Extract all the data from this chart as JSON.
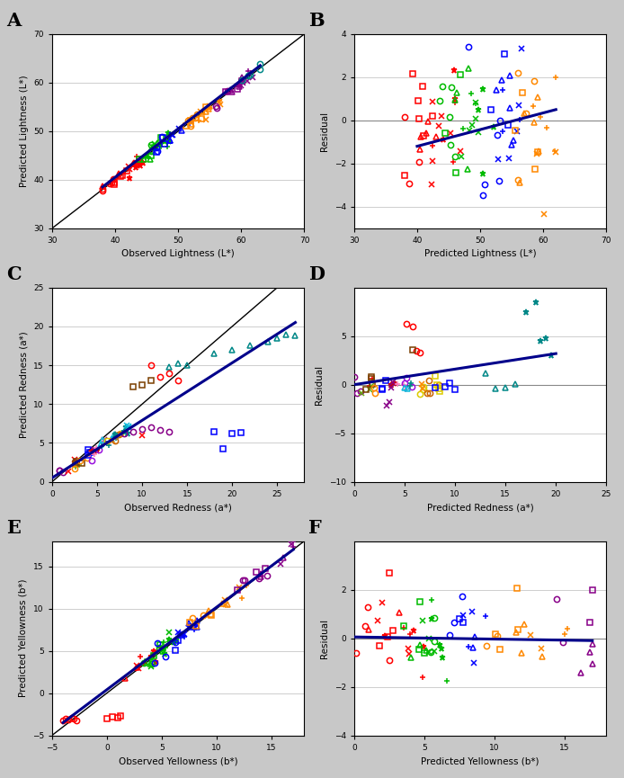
{
  "panels": {
    "A": {
      "xlabel": "Observed Lightness (L*)",
      "ylabel": "Predicted Lightness (L*)",
      "xlim": [
        30,
        70
      ],
      "ylim": [
        30,
        70
      ],
      "xticks": [
        30,
        40,
        50,
        60,
        70
      ],
      "yticks": [
        30,
        40,
        50,
        60,
        70
      ],
      "identity_line": true,
      "trend_line": true,
      "trend_x": [
        38,
        63
      ],
      "trend_y": [
        38.5,
        63.5
      ],
      "label": "A"
    },
    "B": {
      "xlabel": "Predicted Lightness (L*)",
      "ylabel": "Residual",
      "xlim": [
        30,
        70
      ],
      "ylim": [
        -5,
        4
      ],
      "xticks": [
        30,
        40,
        50,
        60,
        70
      ],
      "yticks": [
        -4,
        -2,
        0,
        2,
        4
      ],
      "hline": true,
      "trend_line": true,
      "trend_x": [
        40,
        62
      ],
      "trend_y": [
        -1.2,
        0.5
      ],
      "label": "B"
    },
    "C": {
      "xlabel": "Observed Redness (a*)",
      "ylabel": "Predicted Redness (a*)",
      "xlim": [
        0,
        28
      ],
      "ylim": [
        0,
        25
      ],
      "xticks": [
        0,
        5,
        10,
        15,
        20,
        25
      ],
      "yticks": [
        0,
        5,
        10,
        15,
        20,
        25
      ],
      "identity_line": true,
      "trend_line": true,
      "trend_x": [
        0,
        27
      ],
      "trend_y": [
        0.5,
        20.5
      ],
      "label": "C"
    },
    "D": {
      "xlabel": "Predicted Redness (a*)",
      "ylabel": "Residual",
      "xlim": [
        0,
        25
      ],
      "ylim": [
        -10,
        10
      ],
      "xticks": [
        0,
        5,
        10,
        15,
        20,
        25
      ],
      "yticks": [
        -10,
        -5,
        0,
        5
      ],
      "hline": true,
      "trend_line": true,
      "trend_x": [
        0,
        20
      ],
      "trend_y": [
        0.0,
        3.2
      ],
      "label": "D"
    },
    "E": {
      "xlabel": "Observed Yellowness (b*)",
      "ylabel": "Predicted Yellowness (b*)",
      "xlim": [
        -5,
        18
      ],
      "ylim": [
        -5,
        18
      ],
      "xticks": [
        -5,
        0,
        5,
        10,
        15
      ],
      "yticks": [
        -5,
        0,
        5,
        10,
        15
      ],
      "identity_line": true,
      "trend_line": true,
      "trend_x": [
        -4,
        17
      ],
      "trend_y": [
        -3.5,
        17.0
      ],
      "label": "E"
    },
    "F": {
      "xlabel": "Predicted Yellowness (b*)",
      "ylabel": "Residual",
      "xlim": [
        0,
        18
      ],
      "ylim": [
        -4,
        4
      ],
      "xticks": [
        0,
        5,
        10,
        15
      ],
      "yticks": [
        -4,
        -2,
        0,
        2
      ],
      "hline": true,
      "trend_line": true,
      "trend_x": [
        0,
        17
      ],
      "trend_y": [
        0.05,
        -0.1
      ],
      "label": "F"
    }
  },
  "colors": [
    "#FF0000",
    "#CC0000",
    "#00AA00",
    "#007700",
    "#0000FF",
    "#0055CC",
    "#FF8C00",
    "#CC6600",
    "#800080",
    "#AA00AA",
    "#008080",
    "#006060",
    "#FFD700",
    "#CCAA00",
    "#8B4513",
    "#6B3010",
    "#FF69B4",
    "#DD4499",
    "#00CED1",
    "#009999",
    "#6B8E23",
    "#4A6210",
    "#9400D3",
    "#7700AA",
    "#FF6347",
    "#CC3311",
    "#1E90FF",
    "#0066DD",
    "#32CD32",
    "#22AA22",
    "#DC143C",
    "#AA1030",
    "#FF1493",
    "#CC0077",
    "#00FA9A",
    "#00CC77",
    "#DAA520",
    "#AA8010"
  ],
  "markers": [
    "o",
    "s",
    "^",
    "x",
    "+",
    "*",
    "D",
    "v",
    "p"
  ],
  "trend_color": "#00008B",
  "trend_lw": 2.2,
  "identity_color": "#000000",
  "hline_color": "#888888",
  "background_color": "#FFFFFF",
  "outer_background": "#C8C8C8"
}
